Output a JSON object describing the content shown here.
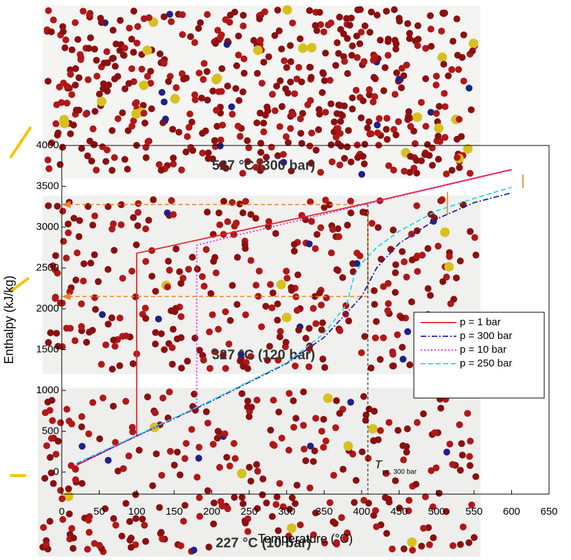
{
  "chart_data": {
    "type": "line",
    "xlabel": "Temperature (°C)",
    "ylabel": "Enthalpy (kJ/kg)",
    "xlim": [
      0,
      650
    ],
    "xticks": [
      0,
      50,
      100,
      150,
      200,
      250,
      300,
      350,
      400,
      450,
      500,
      550,
      600,
      650
    ],
    "ylim": [
      -270,
      4000
    ],
    "yticks": [
      0,
      500,
      1000,
      1500,
      2000,
      2500,
      3000,
      3500,
      4000
    ],
    "panel_labels": [
      "527 °C (300 bar)",
      "327 °C (120 bar)",
      "227 °C (10 bar)"
    ],
    "annotation": {
      "text": "T",
      "subscript": "pc, 300 bar"
    },
    "series": [
      {
        "name": "p = 1 bar",
        "color": "#e8202a",
        "dash": "",
        "x": [
          20,
          100,
          100,
          200,
          400,
          600
        ],
        "values": [
          84,
          445,
          2680,
          2880,
          3277,
          3706
        ]
      },
      {
        "name": "p = 300 bar",
        "color": "#1a1aa8",
        "dash": "8 3 2 3",
        "x": [
          20,
          100,
          200,
          300,
          350,
          380,
          400,
          420,
          450,
          500,
          550,
          600
        ],
        "values": [
          100,
          440,
          870,
          1330,
          1650,
          1950,
          2150,
          2500,
          2800,
          3100,
          3300,
          3420
        ]
      },
      {
        "name": "p = 10 bar",
        "color": "#e020e0",
        "dash": "2 3",
        "x": [
          20,
          100,
          180,
          180,
          400,
          600
        ],
        "values": [
          90,
          440,
          790,
          2780,
          3270,
          3700
        ]
      },
      {
        "name": "p = 250 bar",
        "color": "#20d8e8",
        "dash": "7 4",
        "x": [
          20,
          100,
          200,
          300,
          350,
          380,
          390,
          400,
          420,
          450,
          500,
          550,
          600
        ],
        "values": [
          110,
          450,
          880,
          1340,
          1700,
          2050,
          2400,
          2560,
          2750,
          2950,
          3200,
          3350,
          3490
        ]
      }
    ]
  }
}
